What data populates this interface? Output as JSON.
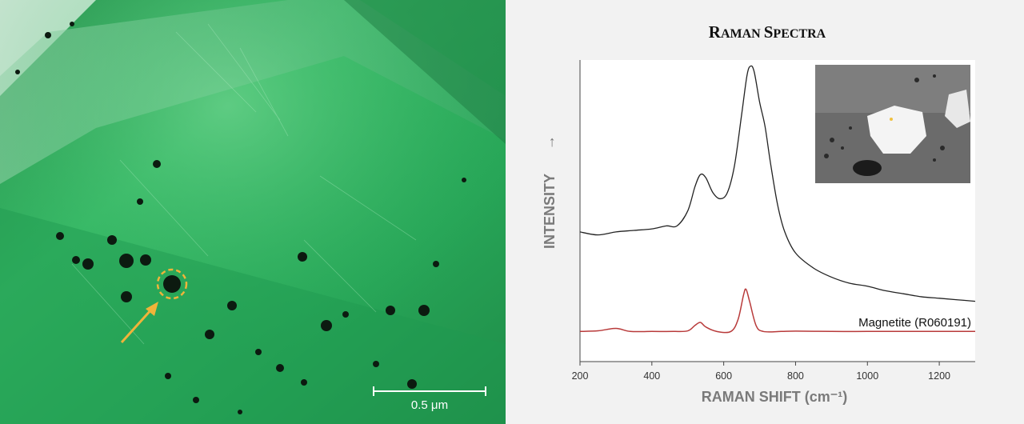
{
  "photo": {
    "scale_bar_label": "0.5 μm",
    "arrow_color": "#f0b43a",
    "circle_color": "#f0b43a",
    "gem_color": "#2db860",
    "inclusion_color": "#0c1a10"
  },
  "chart_data": {
    "type": "line",
    "title_first": "R",
    "title_rest": "AMAN ",
    "title_second_first": "S",
    "title_second_rest": "PECTRA",
    "xlabel": "RAMAN SHIFT (cm⁻¹)",
    "ylabel": "INTENSITY",
    "ylabel_arrow": "→",
    "xlim": [
      200,
      1300
    ],
    "xticks": [
      200,
      400,
      600,
      800,
      1000,
      1200
    ],
    "ylim": [
      0,
      1
    ],
    "grid": false,
    "inset": "top-right",
    "series": [
      {
        "role": "sample",
        "color": "#222222",
        "points": [
          [
            200,
            0.43
          ],
          [
            250,
            0.42
          ],
          [
            300,
            0.43
          ],
          [
            350,
            0.435
          ],
          [
            400,
            0.44
          ],
          [
            440,
            0.45
          ],
          [
            470,
            0.45
          ],
          [
            500,
            0.5
          ],
          [
            520,
            0.58
          ],
          [
            535,
            0.62
          ],
          [
            550,
            0.61
          ],
          [
            570,
            0.56
          ],
          [
            590,
            0.54
          ],
          [
            610,
            0.56
          ],
          [
            630,
            0.65
          ],
          [
            650,
            0.82
          ],
          [
            665,
            0.95
          ],
          [
            675,
            0.98
          ],
          [
            685,
            0.96
          ],
          [
            700,
            0.86
          ],
          [
            715,
            0.78
          ],
          [
            730,
            0.66
          ],
          [
            750,
            0.52
          ],
          [
            770,
            0.43
          ],
          [
            800,
            0.36
          ],
          [
            850,
            0.31
          ],
          [
            900,
            0.28
          ],
          [
            950,
            0.26
          ],
          [
            1000,
            0.25
          ],
          [
            1050,
            0.235
          ],
          [
            1100,
            0.225
          ],
          [
            1150,
            0.215
          ],
          [
            1200,
            0.21
          ],
          [
            1250,
            0.205
          ],
          [
            1300,
            0.2
          ]
        ]
      },
      {
        "role": "reference",
        "name": "Magnetite (R060191)",
        "color": "#b83a3a",
        "points": [
          [
            200,
            0.1
          ],
          [
            250,
            0.102
          ],
          [
            300,
            0.11
          ],
          [
            340,
            0.1
          ],
          [
            400,
            0.1
          ],
          [
            460,
            0.1
          ],
          [
            500,
            0.102
          ],
          [
            520,
            0.12
          ],
          [
            535,
            0.13
          ],
          [
            550,
            0.115
          ],
          [
            580,
            0.1
          ],
          [
            620,
            0.1
          ],
          [
            640,
            0.14
          ],
          [
            655,
            0.22
          ],
          [
            662,
            0.24
          ],
          [
            672,
            0.2
          ],
          [
            690,
            0.12
          ],
          [
            710,
            0.1
          ],
          [
            760,
            0.1
          ],
          [
            800,
            0.101
          ],
          [
            900,
            0.1
          ],
          [
            1000,
            0.1
          ],
          [
            1100,
            0.1
          ],
          [
            1200,
            0.1
          ],
          [
            1300,
            0.1
          ]
        ]
      }
    ]
  }
}
